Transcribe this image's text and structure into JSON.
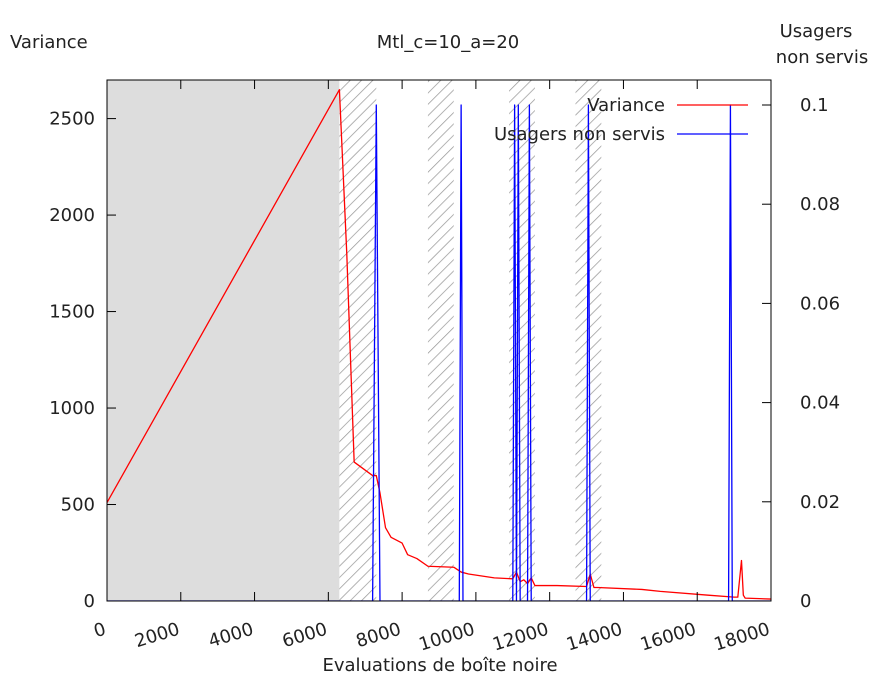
{
  "chart_data": {
    "type": "line",
    "title": "Mtl_c=10_a=20",
    "xlabel": "Evaluations de boîte noire",
    "ylabel_left": "Variance",
    "ylabel_right_lines": [
      "Usagers",
      "non servis"
    ],
    "xlim": [
      0,
      18000
    ],
    "ylim_left": [
      0,
      2700
    ],
    "ylim_right": [
      0,
      0.1
    ],
    "x_ticks": [
      0,
      2000,
      4000,
      6000,
      8000,
      10000,
      12000,
      14000,
      16000,
      18000
    ],
    "y_left_ticks": [
      0,
      500,
      1000,
      1500,
      2000,
      2500
    ],
    "y_right_ticks": [
      "0",
      "0.02",
      "0.04",
      "0.06",
      "0.08",
      "0.1"
    ],
    "y_right_tick_values": [
      0,
      0.02,
      0.04,
      0.06,
      0.08,
      0.1
    ],
    "grid": false,
    "legend_position": "top-right",
    "shaded_region": {
      "x": [
        0,
        6300
      ],
      "color": "#dddddd"
    },
    "hatched_regions": [
      [
        6300,
        7300
      ],
      [
        8700,
        9400
      ],
      [
        10900,
        11600
      ],
      [
        12700,
        13400
      ]
    ],
    "series": [
      {
        "name": "Variance",
        "axis": "left",
        "color": "#ff0000",
        "x": [
          0,
          6300,
          6500,
          6700,
          7200,
          7300,
          7400,
          7550,
          7700,
          8000,
          8150,
          8400,
          8700,
          9400,
          9600,
          9800,
          10500,
          11000,
          11100,
          11200,
          11300,
          11400,
          11500,
          11600,
          12200,
          13000,
          13100,
          13200,
          13300,
          14500,
          15000,
          16300,
          17000,
          17100,
          17200,
          17250,
          17300,
          18000
        ],
        "y": [
          510,
          2650,
          1800,
          720,
          650,
          650,
          560,
          380,
          330,
          300,
          240,
          220,
          180,
          175,
          150,
          140,
          120,
          115,
          150,
          100,
          110,
          90,
          120,
          80,
          80,
          75,
          140,
          70,
          70,
          60,
          50,
          30,
          20,
          20,
          210,
          30,
          15,
          10
        ]
      },
      {
        "name": "Usagers non servis",
        "axis": "right",
        "color": "#0000ff",
        "x": [
          0,
          7200,
          7300,
          7400,
          9550,
          9600,
          9650,
          11000,
          11050,
          11100,
          11150,
          11200,
          11400,
          11450,
          11500,
          13000,
          13050,
          13100,
          16850,
          16900,
          16950,
          18000
        ],
        "y": [
          0,
          0,
          0.1,
          0,
          0,
          0.1,
          0,
          0,
          0.1,
          0,
          0.1,
          0,
          0,
          0.1,
          0,
          0,
          0.1,
          0,
          0,
          0.1,
          0,
          0
        ]
      }
    ]
  }
}
